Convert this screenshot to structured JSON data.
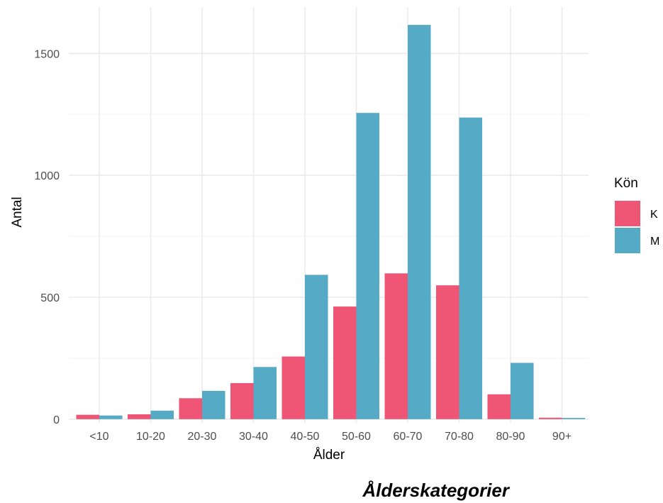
{
  "chart_data": {
    "type": "bar",
    "caption": "Ålderskategorier",
    "xlabel": "Ålder",
    "ylabel": "Antal",
    "categories": [
      "<10",
      "10-20",
      "20-30",
      "30-40",
      "40-50",
      "50-60",
      "60-70",
      "70-80",
      "80-90",
      "90+"
    ],
    "series": [
      {
        "name": "K",
        "color": "#EF5675",
        "values": [
          18,
          20,
          86,
          148,
          257,
          462,
          598,
          549,
          102,
          6
        ]
      },
      {
        "name": "M",
        "color": "#55AAC6",
        "values": [
          15,
          35,
          116,
          214,
          592,
          1256,
          1617,
          1237,
          231,
          5
        ]
      }
    ],
    "ylim": [
      -15,
      1690
    ],
    "yticks": [
      0,
      500,
      1000,
      1500
    ],
    "yticks_minor": [
      250,
      750,
      1250
    ],
    "grid": true,
    "legend": {
      "title": "Kön",
      "position": "right"
    }
  }
}
